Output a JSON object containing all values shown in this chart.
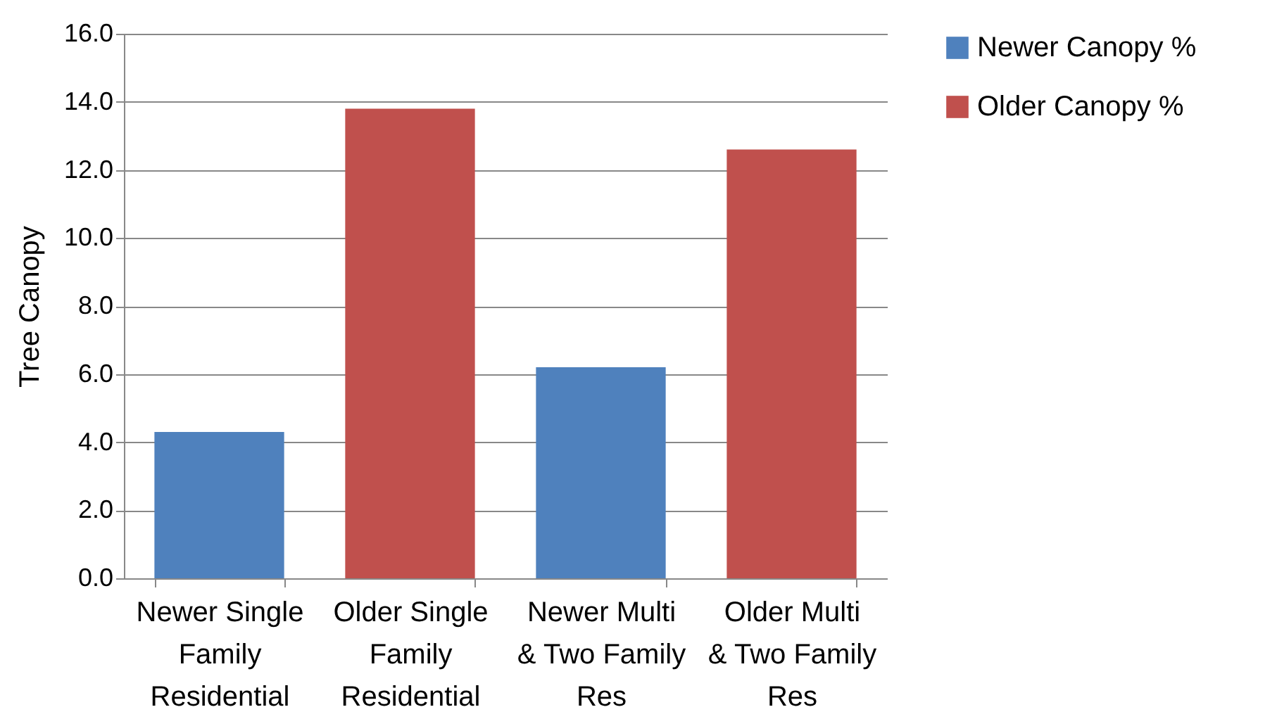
{
  "chart_data": {
    "type": "bar",
    "ylabel": "Tree Canopy",
    "categories": [
      "Newer Single Family Residential",
      "Older Single Family Residential",
      "Newer Multi & Two Family Res",
      "Older Multi & Two Family Res"
    ],
    "series": [
      {
        "name": "Newer Canopy %",
        "color": "#4f81bd",
        "values": [
          4.3,
          null,
          6.2,
          null
        ]
      },
      {
        "name": "Older Canopy %",
        "color": "#c0504d",
        "values": [
          null,
          13.8,
          null,
          12.6
        ]
      }
    ],
    "ylim": [
      0,
      16
    ],
    "yticks": [
      {
        "value": 0,
        "label": "0.0"
      },
      {
        "value": 2,
        "label": "2.0"
      },
      {
        "value": 4,
        "label": "4.0"
      },
      {
        "value": 6,
        "label": "6.0"
      },
      {
        "value": 8,
        "label": "8.0"
      },
      {
        "value": 10,
        "label": "10.0"
      },
      {
        "value": 12,
        "label": "12.0"
      },
      {
        "value": 14,
        "label": "14.0"
      },
      {
        "value": 16,
        "label": "16.0"
      }
    ],
    "grid": "y",
    "legend": "right"
  }
}
